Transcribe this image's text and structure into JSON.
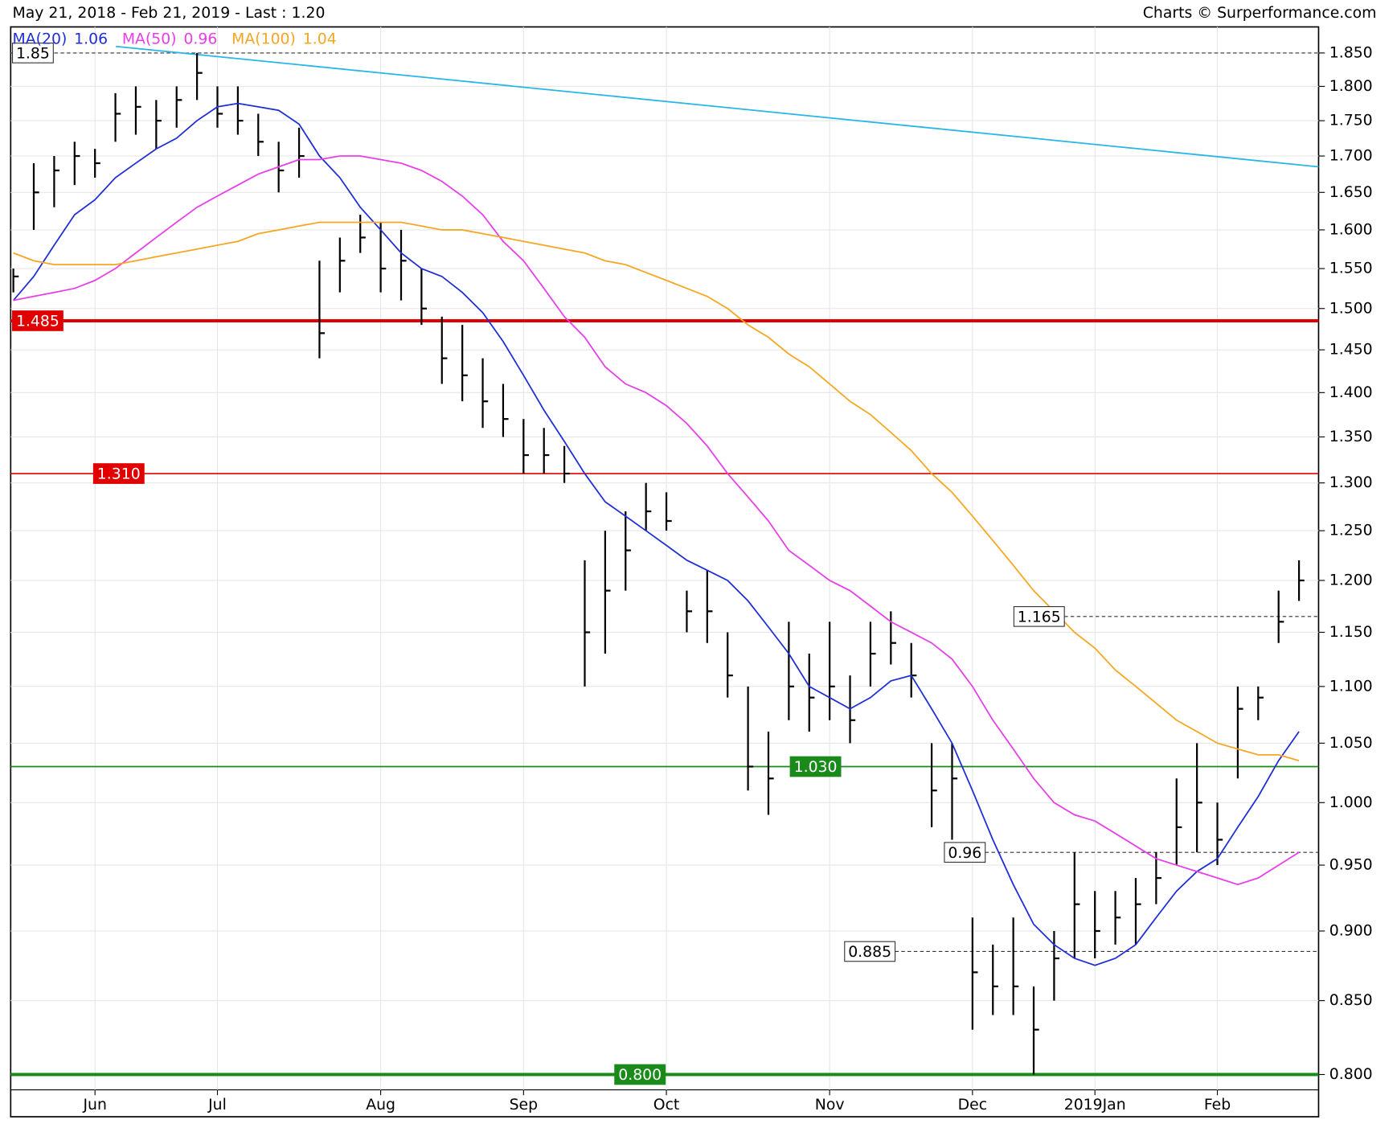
{
  "chart_data": {
    "type": "ohlc",
    "title": "May 21, 2018 - Feb 21, 2019 - Last : 1.20",
    "source": "Charts © Surperformance.com",
    "log_scale": true,
    "grid": true,
    "ylim": [
      0.79,
      1.89
    ],
    "yticks": [
      {
        "value": 0.8,
        "label": "0.800"
      },
      {
        "value": 0.85,
        "label": "0.850"
      },
      {
        "value": 0.9,
        "label": "0.900"
      },
      {
        "value": 0.95,
        "label": "0.950"
      },
      {
        "value": 1.0,
        "label": "1.000"
      },
      {
        "value": 1.05,
        "label": "1.050"
      },
      {
        "value": 1.1,
        "label": "1.100"
      },
      {
        "value": 1.15,
        "label": "1.150"
      },
      {
        "value": 1.2,
        "label": "1.200"
      },
      {
        "value": 1.25,
        "label": "1.250"
      },
      {
        "value": 1.3,
        "label": "1.300"
      },
      {
        "value": 1.35,
        "label": "1.350"
      },
      {
        "value": 1.4,
        "label": "1.400"
      },
      {
        "value": 1.45,
        "label": "1.450"
      },
      {
        "value": 1.5,
        "label": "1.500"
      },
      {
        "value": 1.55,
        "label": "1.550"
      },
      {
        "value": 1.6,
        "label": "1.600"
      },
      {
        "value": 1.65,
        "label": "1.650"
      },
      {
        "value": 1.7,
        "label": "1.700"
      },
      {
        "value": 1.75,
        "label": "1.750"
      },
      {
        "value": 1.8,
        "label": "1.800"
      },
      {
        "value": 1.85,
        "label": "1.850"
      }
    ],
    "categories": [
      null,
      null,
      null,
      null,
      "Jun",
      null,
      null,
      null,
      null,
      null,
      "Jul",
      null,
      null,
      null,
      null,
      null,
      null,
      null,
      "Aug",
      null,
      null,
      null,
      null,
      null,
      null,
      "Sep",
      null,
      null,
      null,
      null,
      null,
      null,
      "Oct",
      null,
      null,
      null,
      null,
      null,
      null,
      null,
      "Nov",
      null,
      null,
      null,
      null,
      null,
      null,
      "Dec",
      null,
      null,
      null,
      null,
      null,
      "2019Jan",
      null,
      null,
      null,
      null,
      null,
      "Feb",
      null,
      null,
      null,
      null
    ],
    "ohlc": {
      "color": "#000000",
      "high": [
        1.55,
        1.69,
        1.7,
        1.72,
        1.71,
        1.79,
        1.8,
        1.78,
        1.8,
        1.85,
        1.8,
        1.8,
        1.76,
        1.72,
        1.74,
        1.56,
        1.59,
        1.62,
        1.61,
        1.6,
        1.55,
        1.49,
        1.48,
        1.44,
        1.41,
        1.37,
        1.36,
        1.34,
        1.22,
        1.25,
        1.27,
        1.3,
        1.29,
        1.19,
        1.21,
        1.15,
        1.1,
        1.06,
        1.16,
        1.13,
        1.16,
        1.11,
        1.16,
        1.17,
        1.14,
        1.05,
        1.05,
        0.91,
        0.89,
        0.91,
        0.86,
        0.9,
        0.96,
        0.93,
        0.93,
        0.94,
        0.96,
        1.02,
        1.05,
        1.0,
        1.1,
        1.1,
        1.19,
        1.22
      ],
      "low": [
        1.52,
        1.6,
        1.63,
        1.66,
        1.67,
        1.72,
        1.73,
        1.71,
        1.74,
        1.78,
        1.74,
        1.73,
        1.7,
        1.65,
        1.67,
        1.44,
        1.52,
        1.57,
        1.52,
        1.51,
        1.48,
        1.41,
        1.39,
        1.36,
        1.35,
        1.31,
        1.31,
        1.3,
        1.1,
        1.13,
        1.19,
        1.25,
        1.25,
        1.15,
        1.14,
        1.09,
        1.01,
        0.99,
        1.07,
        1.06,
        1.07,
        1.05,
        1.1,
        1.12,
        1.09,
        0.98,
        0.97,
        0.83,
        0.84,
        0.84,
        0.8,
        0.85,
        0.88,
        0.88,
        0.89,
        0.89,
        0.92,
        0.95,
        0.96,
        0.95,
        1.02,
        1.07,
        1.14,
        1.18
      ],
      "close": [
        1.54,
        1.65,
        1.68,
        1.7,
        1.69,
        1.76,
        1.77,
        1.75,
        1.78,
        1.82,
        1.76,
        1.75,
        1.72,
        1.68,
        1.7,
        1.47,
        1.56,
        1.59,
        1.55,
        1.56,
        1.5,
        1.44,
        1.42,
        1.39,
        1.37,
        1.33,
        1.33,
        1.31,
        1.15,
        1.19,
        1.23,
        1.27,
        1.26,
        1.17,
        1.17,
        1.11,
        1.03,
        1.02,
        1.1,
        1.09,
        1.1,
        1.07,
        1.13,
        1.14,
        1.11,
        1.01,
        1.02,
        0.87,
        0.86,
        0.86,
        0.83,
        0.88,
        0.92,
        0.9,
        0.91,
        0.92,
        0.94,
        0.98,
        1.0,
        0.97,
        1.08,
        1.09,
        1.16,
        1.2
      ]
    },
    "series": [
      {
        "name": "MA(20)",
        "legend_value": 1.06,
        "color": "#1f2fd6",
        "values": [
          1.51,
          1.54,
          1.58,
          1.62,
          1.64,
          1.67,
          1.69,
          1.71,
          1.725,
          1.75,
          1.77,
          1.775,
          1.77,
          1.765,
          1.745,
          1.7,
          1.67,
          1.63,
          1.6,
          1.57,
          1.55,
          1.54,
          1.52,
          1.495,
          1.46,
          1.42,
          1.38,
          1.345,
          1.31,
          1.28,
          1.265,
          1.25,
          1.235,
          1.22,
          1.21,
          1.2,
          1.18,
          1.155,
          1.13,
          1.1,
          1.09,
          1.08,
          1.09,
          1.105,
          1.11,
          1.08,
          1.05,
          1.01,
          0.97,
          0.935,
          0.905,
          0.89,
          0.88,
          0.875,
          0.88,
          0.89,
          0.91,
          0.93,
          0.945,
          0.955,
          0.98,
          1.005,
          1.035,
          1.06
        ]
      },
      {
        "name": "MA(50)",
        "legend_value": 0.96,
        "color": "#e83ee8",
        "values": [
          1.51,
          1.515,
          1.52,
          1.525,
          1.535,
          1.55,
          1.57,
          1.59,
          1.61,
          1.63,
          1.645,
          1.66,
          1.675,
          1.685,
          1.695,
          1.695,
          1.7,
          1.7,
          1.695,
          1.69,
          1.68,
          1.665,
          1.645,
          1.62,
          1.585,
          1.56,
          1.525,
          1.49,
          1.465,
          1.43,
          1.41,
          1.4,
          1.385,
          1.365,
          1.34,
          1.31,
          1.285,
          1.26,
          1.23,
          1.215,
          1.2,
          1.19,
          1.175,
          1.16,
          1.15,
          1.14,
          1.125,
          1.1,
          1.07,
          1.045,
          1.02,
          1.0,
          0.99,
          0.985,
          0.975,
          0.965,
          0.955,
          0.95,
          0.945,
          0.94,
          0.935,
          0.94,
          0.95,
          0.96
        ]
      },
      {
        "name": "MA(100)",
        "legend_value": 1.04,
        "color": "#f5a623",
        "values": [
          1.57,
          1.56,
          1.555,
          1.555,
          1.555,
          1.555,
          1.56,
          1.565,
          1.57,
          1.575,
          1.58,
          1.585,
          1.595,
          1.6,
          1.605,
          1.61,
          1.61,
          1.61,
          1.61,
          1.61,
          1.605,
          1.6,
          1.6,
          1.595,
          1.59,
          1.585,
          1.58,
          1.575,
          1.57,
          1.56,
          1.555,
          1.545,
          1.535,
          1.525,
          1.515,
          1.5,
          1.48,
          1.465,
          1.445,
          1.43,
          1.41,
          1.39,
          1.375,
          1.355,
          1.335,
          1.31,
          1.29,
          1.265,
          1.24,
          1.215,
          1.19,
          1.17,
          1.15,
          1.135,
          1.115,
          1.1,
          1.085,
          1.07,
          1.06,
          1.05,
          1.045,
          1.04,
          1.04,
          1.035
        ]
      }
    ],
    "trend_line": {
      "color": "#29b6e6",
      "values": [
        1.86,
        1.685
      ]
    },
    "levels": [
      {
        "value": 1.85,
        "color": "#333333",
        "style": "dashed"
      },
      {
        "value": 1.485,
        "color": "#e00000",
        "style": "thick"
      },
      {
        "value": 1.31,
        "label": "1.310",
        "color": "#e00000",
        "style": "solid"
      },
      {
        "value": 1.165,
        "color": "#333333",
        "style": "dashed"
      },
      {
        "value": 1.03,
        "label": "1.030",
        "color": "#1a8a1a",
        "style": "solid"
      },
      {
        "value": 0.96,
        "color": "#333333",
        "style": "dashed"
      },
      {
        "value": 0.885,
        "color": "#333333",
        "style": "dashed"
      },
      {
        "value": 0.8,
        "label": "0.800",
        "color": "#1a8a1a",
        "style": "thick"
      }
    ]
  }
}
